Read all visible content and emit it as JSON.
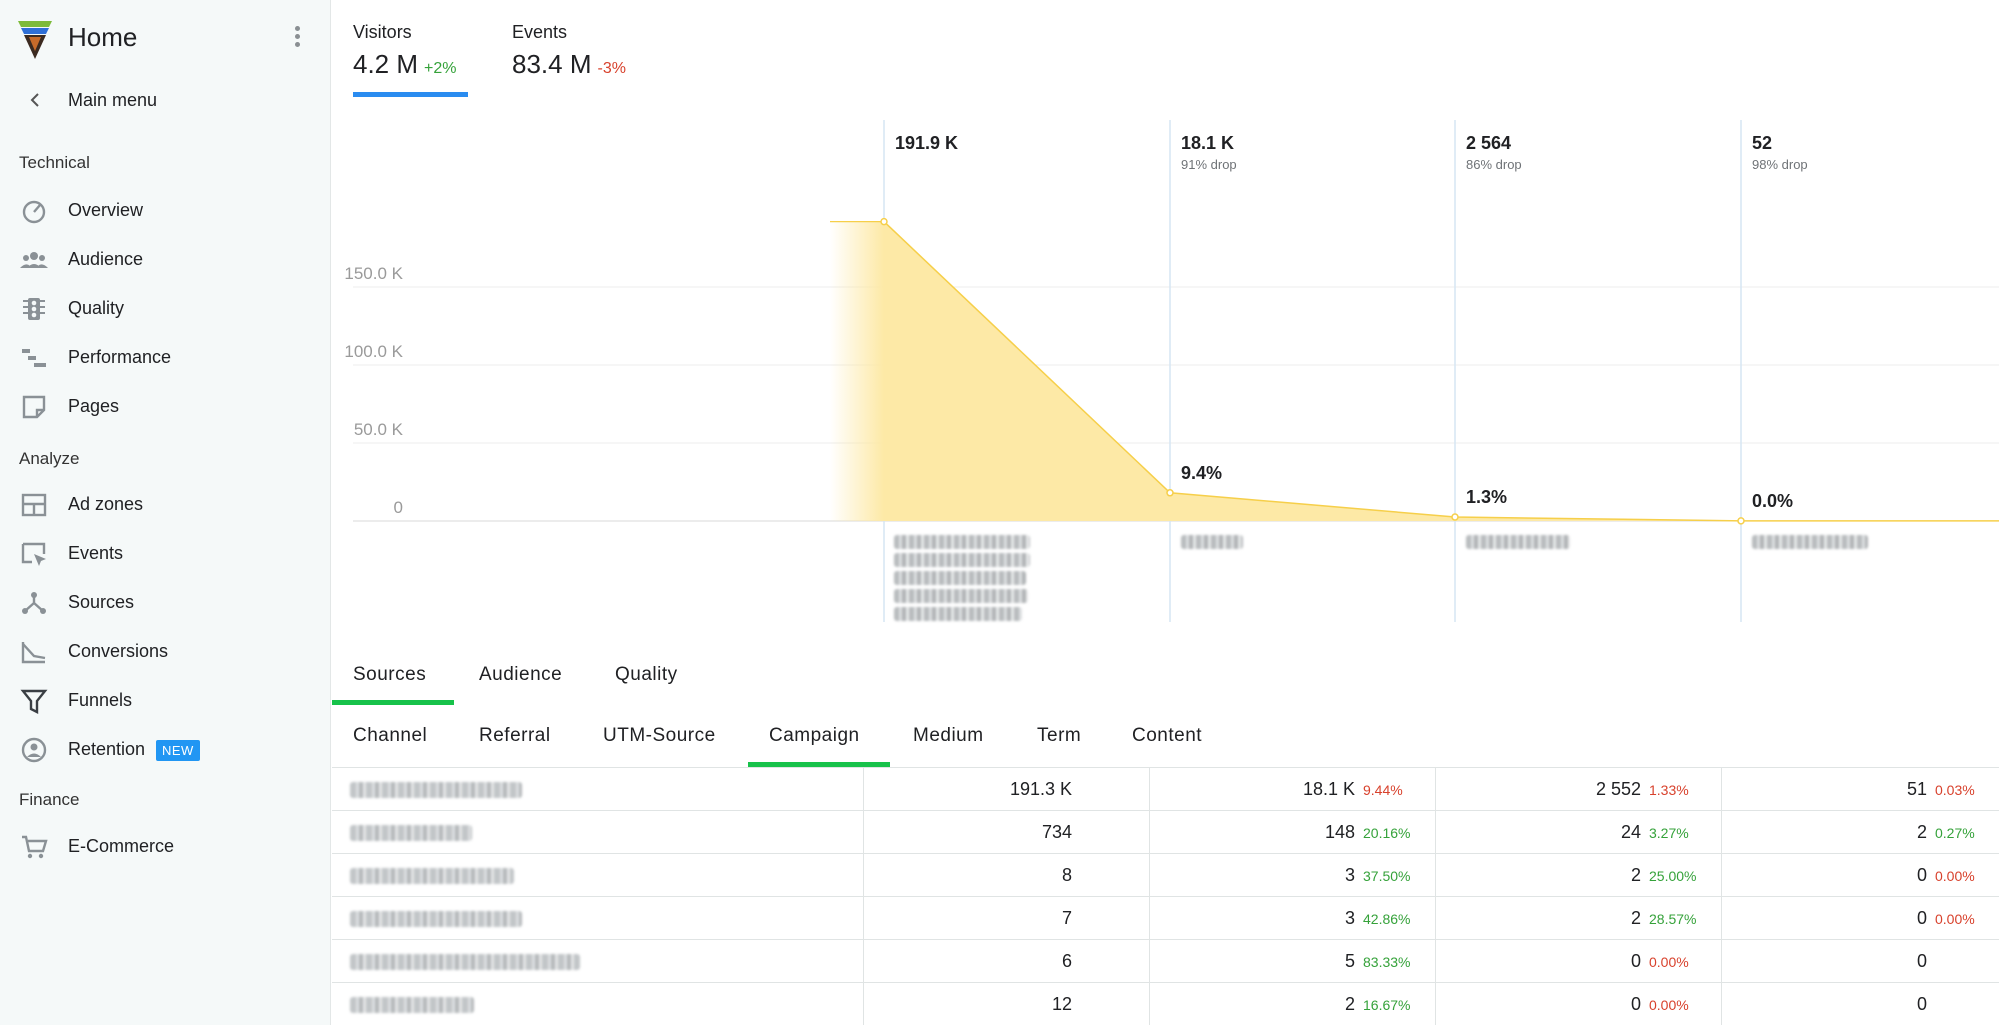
{
  "sidebar": {
    "title": "Home",
    "main_menu": "Main menu",
    "sections": [
      {
        "label": "Technical",
        "items": [
          {
            "label": "Overview",
            "icon": "speedometer-icon"
          },
          {
            "label": "Audience",
            "icon": "people-icon"
          },
          {
            "label": "Quality",
            "icon": "traffic-light-icon"
          },
          {
            "label": "Performance",
            "icon": "waterfall-icon"
          },
          {
            "label": "Pages",
            "icon": "page-icon"
          }
        ]
      },
      {
        "label": "Analyze",
        "items": [
          {
            "label": "Ad zones",
            "icon": "layout-icon"
          },
          {
            "label": "Events",
            "icon": "cursor-icon"
          },
          {
            "label": "Sources",
            "icon": "branch-icon"
          },
          {
            "label": "Conversions",
            "icon": "conversion-icon"
          },
          {
            "label": "Funnels",
            "icon": "funnel-icon"
          },
          {
            "label": "Retention",
            "icon": "retention-icon",
            "badge": "NEW"
          }
        ]
      },
      {
        "label": "Finance",
        "items": [
          {
            "label": "E-Commerce",
            "icon": "cart-icon"
          }
        ]
      }
    ]
  },
  "metrics": [
    {
      "name": "Visitors",
      "value": "4.2 M",
      "delta": "+2%"
    },
    {
      "name": "Events",
      "value": "83.4 M",
      "delta": "-3%"
    }
  ],
  "chart_data": {
    "type": "area",
    "ylim": [
      0,
      191900
    ],
    "y_ticks": [
      "150.0 K",
      "100.0 K",
      "50.0 K",
      "0"
    ],
    "steps": [
      {
        "count": "191.9 K",
        "drop": "",
        "conversion": ""
      },
      {
        "count": "18.1 K",
        "drop": "91% drop",
        "conversion": "9.4%"
      },
      {
        "count": "2 564",
        "drop": "86% drop",
        "conversion": "1.3%"
      },
      {
        "count": "52",
        "drop": "98% drop",
        "conversion": "0.0%"
      }
    ],
    "values": [
      191900,
      18100,
      2564,
      52
    ],
    "fill_color": "#fde9a6",
    "line_color": "#f6cf4a"
  },
  "tabs": [
    "Sources",
    "Audience",
    "Quality"
  ],
  "subtabs": [
    "Channel",
    "Referral",
    "UTM-Source",
    "Campaign",
    "Medium",
    "Term",
    "Content"
  ],
  "table": {
    "rows": [
      {
        "c1": "191.3 K",
        "c2": "18.1 K",
        "p2": "9.44%",
        "c3": "2 552",
        "p3": "1.33%",
        "c4": "51",
        "p4": "0.03%"
      },
      {
        "c1": "734",
        "c2": "148",
        "p2": "20.16%",
        "c3": "24",
        "p3": "3.27%",
        "c4": "2",
        "p4": "0.27%"
      },
      {
        "c1": "8",
        "c2": "3",
        "p2": "37.50%",
        "c3": "2",
        "p3": "25.00%",
        "c4": "0",
        "p4": "0.00%"
      },
      {
        "c1": "7",
        "c2": "3",
        "p2": "42.86%",
        "c3": "2",
        "p3": "28.57%",
        "c4": "0",
        "p4": "0.00%"
      },
      {
        "c1": "6",
        "c2": "5",
        "p2": "83.33%",
        "c3": "0",
        "p3": "0.00%",
        "c4": "0",
        "p4": ""
      },
      {
        "c1": "12",
        "c2": "2",
        "p2": "16.67%",
        "c3": "0",
        "p3": "0.00%",
        "c4": "0",
        "p4": ""
      }
    ]
  }
}
